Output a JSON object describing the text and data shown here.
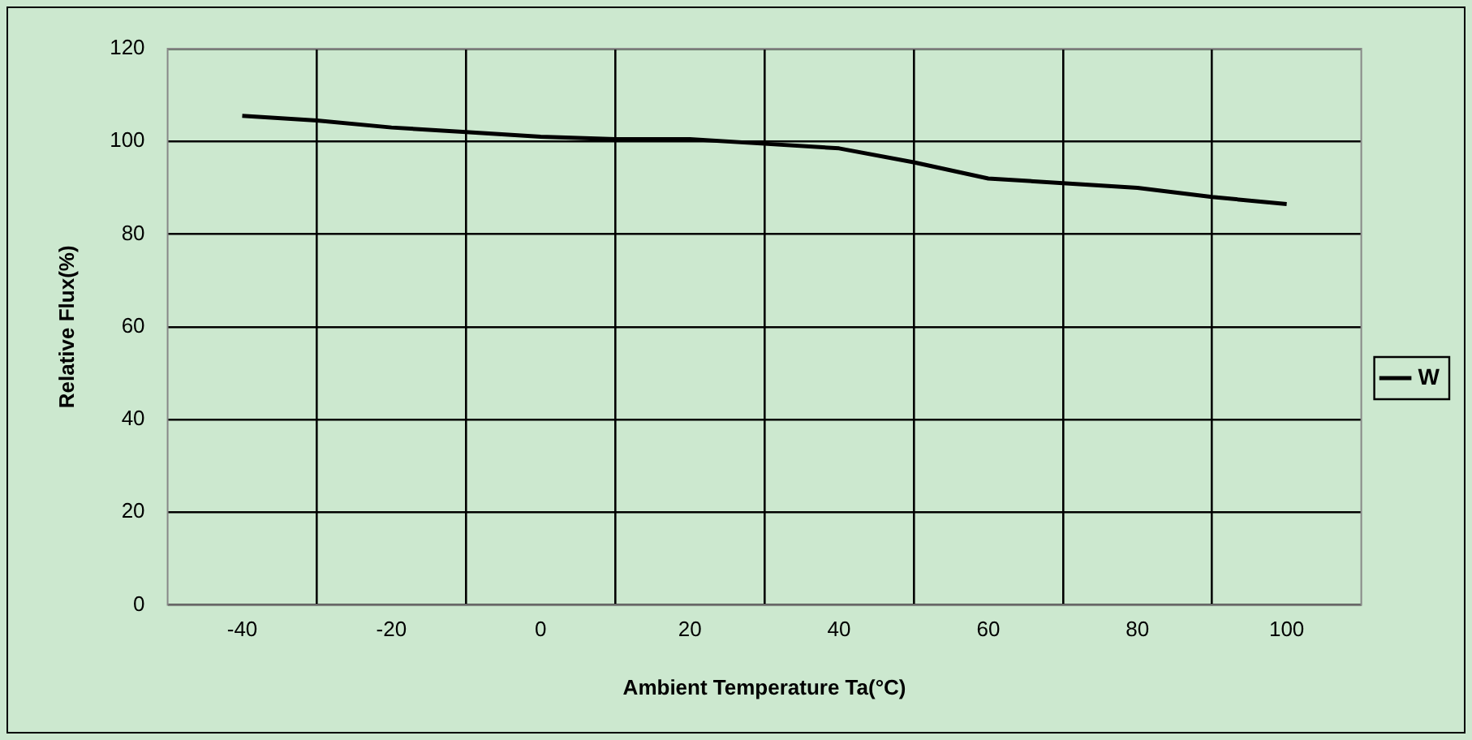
{
  "chart_data": {
    "type": "line",
    "xlabel": "Ambient Temperature Ta(°C)",
    "ylabel": "Relative Flux(%)",
    "x": [
      -40,
      -30,
      -20,
      -10,
      0,
      10,
      20,
      30,
      40,
      50,
      60,
      70,
      80,
      90,
      100
    ],
    "series": [
      {
        "name": "W",
        "color": "#000000",
        "values": [
          105.5,
          104.5,
          103,
          102,
          101,
          100.5,
          100.5,
          99.5,
          98.5,
          95.5,
          92,
          91,
          90,
          88,
          86.5
        ]
      }
    ],
    "xlim": [
      -50,
      110
    ],
    "xticks": [
      -40,
      {
        "value": -30,
        "label": null
      },
      -20,
      {
        "value": -10,
        "label": null
      },
      0,
      {
        "value": 10,
        "label": null
      },
      20,
      {
        "value": 30,
        "label": null
      },
      40,
      {
        "value": 50,
        "label": null
      },
      60,
      {
        "value": 70,
        "label": null
      },
      80,
      {
        "value": 90,
        "label": null
      },
      100
    ],
    "ylim": [
      0,
      120
    ],
    "yticks": [
      0,
      20,
      40,
      60,
      80,
      100,
      120
    ],
    "grid": true,
    "legend": "right",
    "marker": "none",
    "line_style": "solid"
  }
}
